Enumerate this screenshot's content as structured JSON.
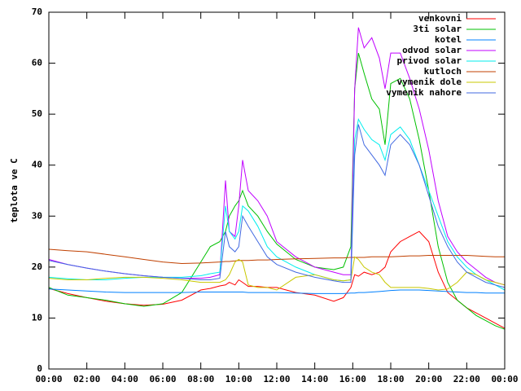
{
  "chart_data": {
    "type": "line",
    "ylabel": "teplota ve C",
    "xlim": [
      0,
      24
    ],
    "xticks": [
      {
        "value": 0,
        "label": "00:00"
      },
      {
        "value": 2,
        "label": "02:00"
      },
      {
        "value": 4,
        "label": "04:00"
      },
      {
        "value": 6,
        "label": "06:00"
      },
      {
        "value": 8,
        "label": "08:00"
      },
      {
        "value": 10,
        "label": "10:00"
      },
      {
        "value": 12,
        "label": "12:00"
      },
      {
        "value": 14,
        "label": "14:00"
      },
      {
        "value": 16,
        "label": "16:00"
      },
      {
        "value": 18,
        "label": "18:00"
      },
      {
        "value": 20,
        "label": "20:00"
      },
      {
        "value": 22,
        "label": "22:00"
      },
      {
        "value": 24,
        "label": "00:00"
      }
    ],
    "ylim": [
      0,
      70
    ],
    "yticks": [
      0,
      10,
      20,
      30,
      40,
      50,
      60,
      70
    ],
    "legend": "top-right",
    "x": [
      0,
      1,
      2,
      3,
      4,
      5,
      6,
      7,
      8,
      8.5,
      9,
      9.3,
      9.5,
      9.8,
      10,
      10.2,
      10.5,
      11,
      11.5,
      12,
      13,
      14,
      15,
      15.5,
      15.9,
      16.1,
      16.3,
      16.6,
      17,
      17.4,
      17.7,
      18,
      18.5,
      19,
      19.5,
      20,
      20.5,
      21,
      21.5,
      22,
      22.5,
      23,
      23.5,
      24
    ],
    "series": [
      {
        "name": "venkovni",
        "color": "#ff0000",
        "values": [
          15.8,
          14.8,
          14,
          13.3,
          12.8,
          12.5,
          12.7,
          13.5,
          15.5,
          15.8,
          16.3,
          16.5,
          17,
          16.5,
          17.5,
          17,
          16.2,
          16.2,
          16,
          16,
          15,
          14.5,
          13.3,
          14,
          16,
          18.5,
          18.2,
          19,
          18.5,
          19,
          20,
          23,
          25,
          26,
          27,
          25,
          19,
          15,
          13.5,
          12,
          11,
          10,
          9,
          8
        ]
      },
      {
        "name": "3ti solar",
        "color": "#00c000",
        "values": [
          16,
          14.5,
          14,
          13.5,
          12.8,
          12.3,
          12.8,
          15,
          21,
          24,
          25,
          27,
          30,
          32,
          33,
          35,
          32,
          30,
          27,
          24.5,
          21.5,
          20,
          19.5,
          20,
          24,
          55,
          62,
          58,
          53,
          51,
          44,
          56,
          57,
          53,
          45,
          35,
          24,
          17,
          13.5,
          12,
          10.5,
          9.5,
          8.5,
          7.8
        ]
      },
      {
        "name": "kotel",
        "color": "#0080ff",
        "values": [
          15.7,
          15.5,
          15.3,
          15.1,
          15,
          15,
          15,
          15,
          15.1,
          15.1,
          15.1,
          15.1,
          15.1,
          15.1,
          15.1,
          15.1,
          15,
          15,
          15,
          15,
          14.9,
          14.8,
          14.8,
          14.8,
          14.9,
          14.9,
          15,
          15,
          15.1,
          15.2,
          15.3,
          15.4,
          15.5,
          15.5,
          15.5,
          15.4,
          15.3,
          15.2,
          15.1,
          15,
          15,
          14.9,
          14.9,
          14.9
        ]
      },
      {
        "name": "odvod solar",
        "color": "#c000ff",
        "values": [
          21.5,
          20.5,
          19.8,
          19.2,
          18.7,
          18.3,
          18,
          17.8,
          17.8,
          18,
          18.5,
          37,
          27,
          26,
          32,
          41,
          35,
          33,
          30,
          25,
          22,
          20,
          19,
          18.5,
          18.5,
          55,
          67,
          63,
          65,
          61,
          55,
          62,
          62,
          57,
          51,
          43,
          33,
          26,
          23,
          21,
          19.5,
          18,
          17,
          16.5
        ]
      },
      {
        "name": "privod solar",
        "color": "#00eeee",
        "values": [
          18,
          17.7,
          17.5,
          17.5,
          17.8,
          18,
          18,
          18,
          18.3,
          18.7,
          19,
          32,
          27,
          25.5,
          27,
          32,
          31,
          28,
          24,
          22,
          20,
          18.5,
          17.5,
          17.3,
          17.5,
          45,
          49,
          47,
          45,
          44,
          41,
          46,
          47.5,
          45,
          40,
          35,
          30,
          25,
          22,
          20,
          18.5,
          17.5,
          16.5,
          15.5
        ]
      },
      {
        "name": "kutloch",
        "color": "#c04000",
        "values": [
          23.5,
          23.2,
          23,
          22.5,
          22,
          21.5,
          21,
          20.7,
          20.8,
          20.9,
          21,
          21.1,
          21.1,
          21.2,
          21.3,
          21.3,
          21.3,
          21.4,
          21.4,
          21.5,
          21.6,
          21.7,
          21.8,
          21.8,
          21.9,
          21.9,
          21.9,
          21.9,
          22,
          22,
          22,
          22,
          22.1,
          22.2,
          22.2,
          22.3,
          22.3,
          22.3,
          22.3,
          22.3,
          22.2,
          22.1,
          22,
          22
        ]
      },
      {
        "name": "vymenik dole",
        "color": "#c8c800",
        "values": [
          17.8,
          17.5,
          17.5,
          17.8,
          18,
          18,
          17.8,
          17.5,
          17,
          17,
          17,
          17.5,
          18.5,
          21,
          21.5,
          21,
          16.5,
          16,
          16,
          15.5,
          18,
          18.5,
          17.5,
          17.3,
          17.5,
          22,
          21.5,
          20,
          19,
          18.5,
          17,
          16,
          16,
          16,
          16,
          15.8,
          15.5,
          15.7,
          17,
          19,
          18.5,
          17.5,
          17,
          16.5
        ]
      },
      {
        "name": "vymenik nahore",
        "color": "#4169e1",
        "values": [
          21.3,
          20.5,
          19.8,
          19.2,
          18.7,
          18.3,
          18,
          17.8,
          17.5,
          17.5,
          17.8,
          27,
          24,
          23,
          24,
          30,
          28,
          25,
          22,
          20.5,
          19,
          18,
          17.3,
          17,
          17,
          42,
          48,
          44,
          42,
          40,
          38,
          44,
          46,
          44,
          40,
          34,
          28,
          24,
          21,
          19,
          18,
          17,
          16.5,
          16
        ]
      }
    ]
  }
}
